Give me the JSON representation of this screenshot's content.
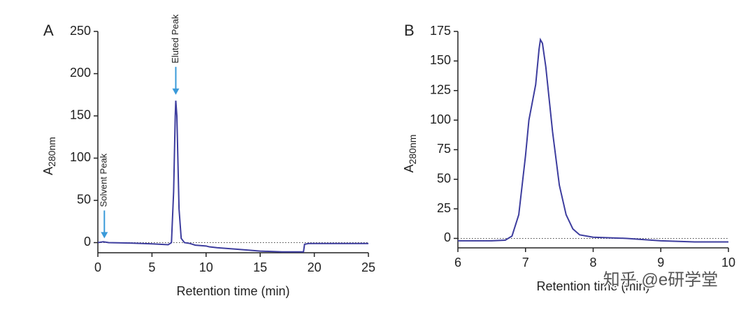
{
  "chart_data": [
    {
      "type": "line",
      "panel_label": "A",
      "x_label": "Retention time (min)",
      "y_label": "A",
      "y_label_subscript": "280nm",
      "x": [
        0,
        0.5,
        1,
        3,
        5,
        6.5,
        6.8,
        7,
        7.15,
        7.2,
        7.3,
        7.5,
        7.7,
        8,
        8.5,
        9,
        10,
        10.3,
        11,
        13,
        15,
        17,
        19,
        19.1,
        19.5,
        20,
        25
      ],
      "series": [
        {
          "color": "#3d3d9e",
          "values": [
            0,
            1,
            0,
            -0.5,
            -1.5,
            -2.5,
            0,
            60,
            150,
            168,
            150,
            40,
            5,
            0,
            -1,
            -3,
            -4,
            -5,
            -6,
            -8,
            -10,
            -11,
            -11,
            -2,
            -1,
            -1,
            -1
          ]
        }
      ],
      "xlim": [
        0,
        25
      ],
      "ylim": [
        -12,
        250
      ],
      "xticks": [
        0,
        5,
        10,
        15,
        20,
        25
      ],
      "yticks": [
        0,
        50,
        100,
        150,
        200,
        250
      ],
      "zero_line": true,
      "annotations": [
        {
          "text": "Solvent Peak",
          "x": 0.6,
          "y": 5,
          "color": "#3a9ad9"
        },
        {
          "text": "Eluted Peak",
          "x": 7.2,
          "y": 175,
          "color": "#3a9ad9"
        }
      ]
    },
    {
      "type": "line",
      "panel_label": "B",
      "x_label": "Retention time (min)",
      "y_label": "A",
      "y_label_subscript": "280nm",
      "x": [
        6,
        6.5,
        6.7,
        6.8,
        6.9,
        7,
        7.05,
        7.1,
        7.15,
        7.2,
        7.22,
        7.25,
        7.3,
        7.4,
        7.5,
        7.6,
        7.7,
        7.8,
        8,
        8.5,
        9,
        9.5,
        10
      ],
      "series": [
        {
          "color": "#3d3d9e",
          "values": [
            -2,
            -2,
            -1.5,
            2,
            20,
            70,
            100,
            115,
            130,
            160,
            168,
            165,
            145,
            90,
            45,
            20,
            8,
            3,
            1,
            0,
            -2,
            -3,
            -3
          ]
        }
      ],
      "xlim": [
        6,
        10
      ],
      "ylim": [
        -8,
        175
      ],
      "xticks": [
        6,
        7,
        8,
        9,
        10
      ],
      "yticks": [
        0,
        25,
        50,
        75,
        100,
        125,
        150,
        175
      ],
      "zero_line": true
    }
  ],
  "watermark": "知乎 @e研学堂"
}
